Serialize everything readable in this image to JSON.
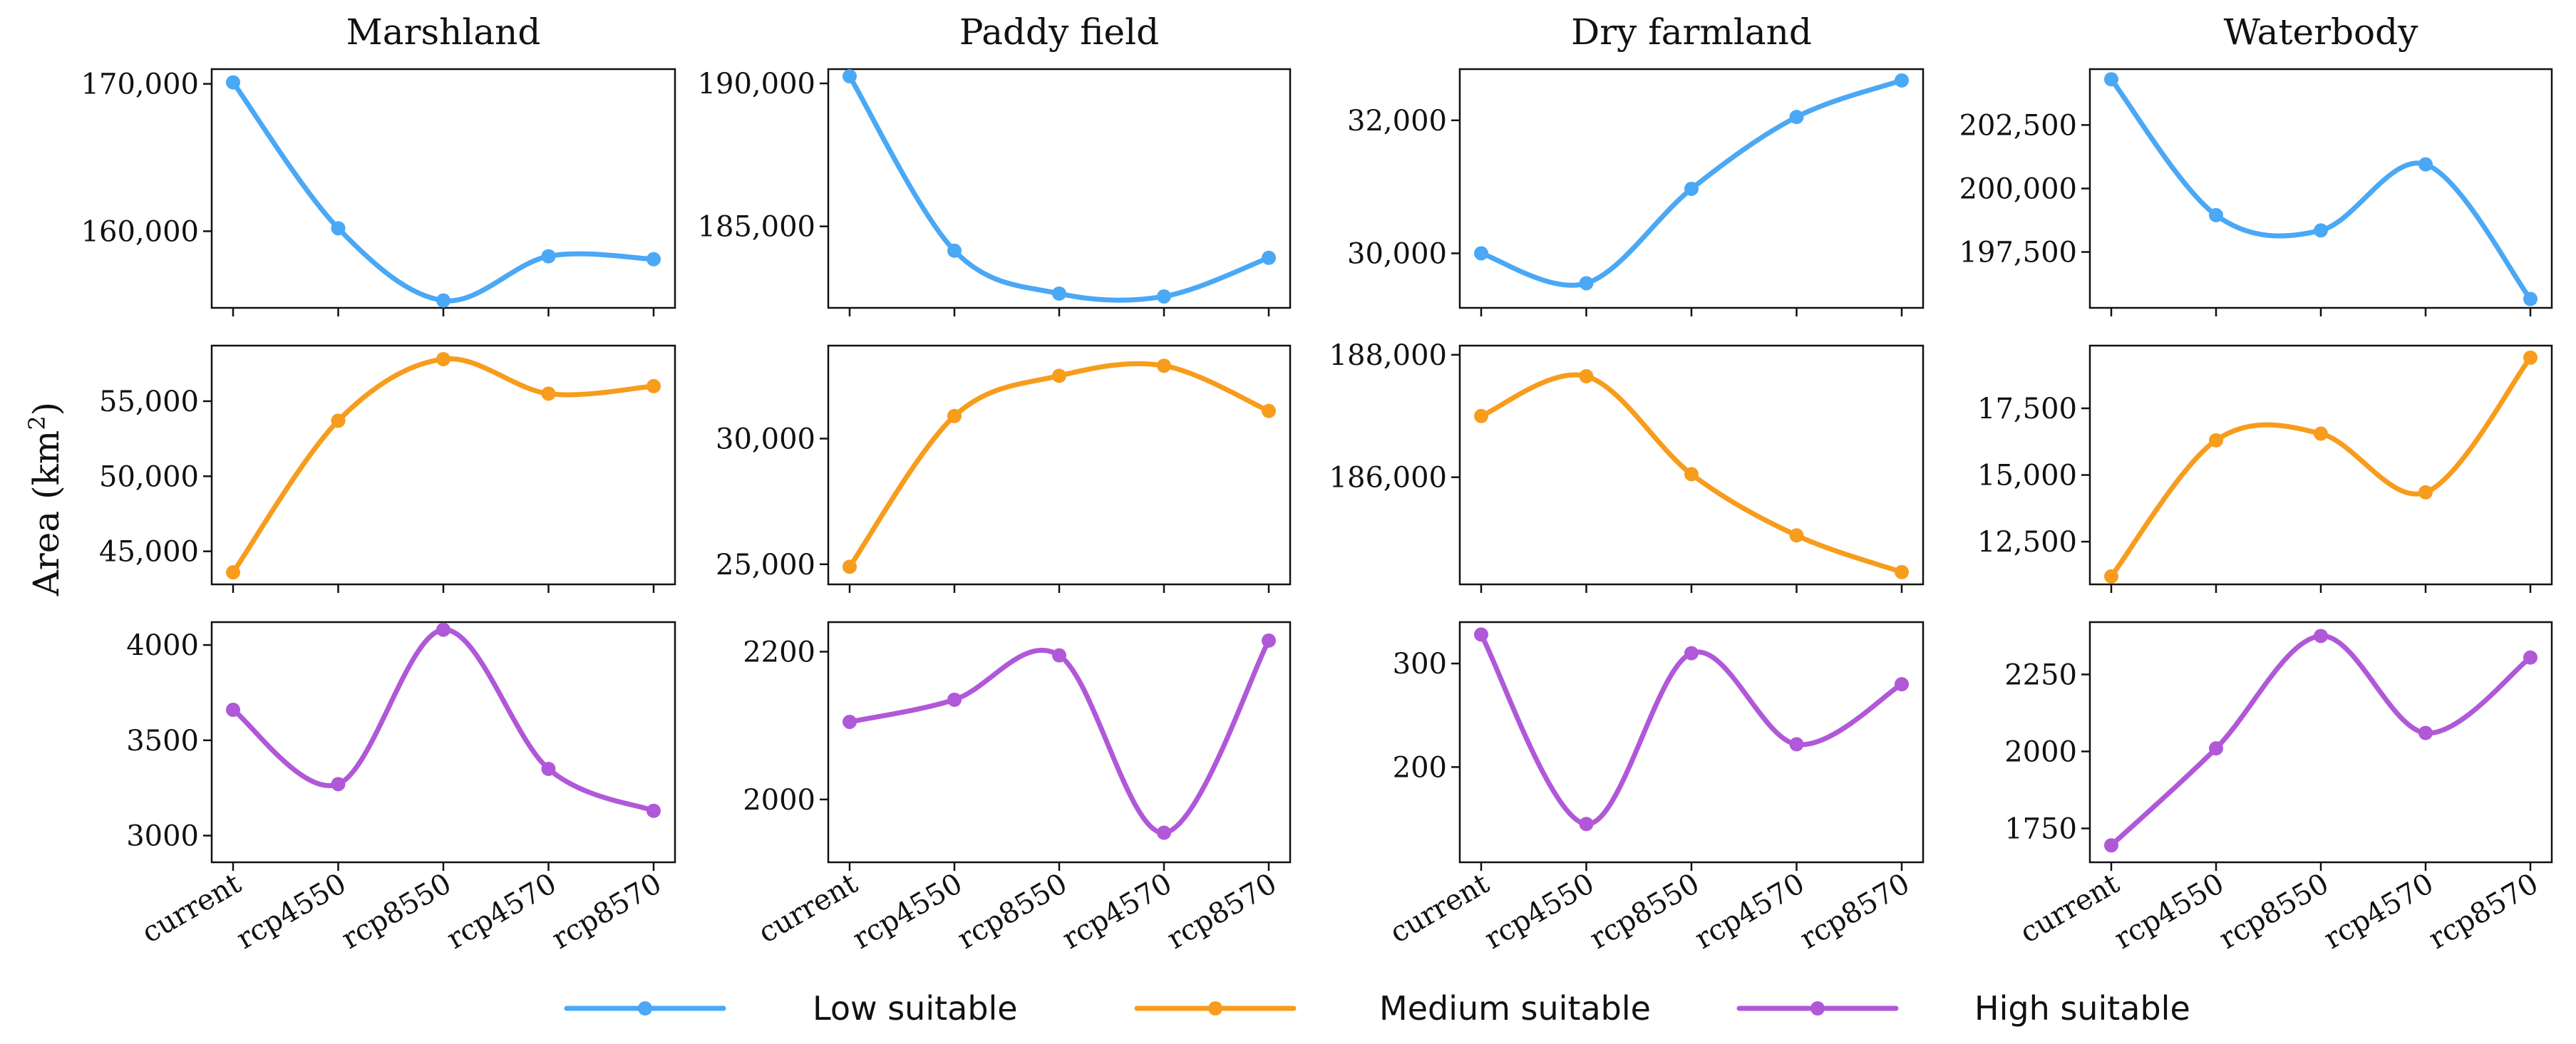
{
  "chart_data": {
    "type": "line",
    "ylabel": "Area (km²)",
    "ylabel_base": "Area (km",
    "ylabel_sup": "2",
    "ylabel_end": ")",
    "categories": [
      "current",
      "rcp4550",
      "rcp8550",
      "rcp4570",
      "rcp8570"
    ],
    "series_styles": [
      {
        "name": "Low suitable",
        "color": "#4aa8f5"
      },
      {
        "name": "Medium suitable",
        "color": "#f79c1c"
      },
      {
        "name": "High suitable",
        "color": "#b058d8"
      }
    ],
    "legend": {
      "position": "bottom",
      "entries": [
        "Low suitable",
        "Medium suitable",
        "High suitable"
      ]
    },
    "columns": [
      {
        "title": "Marshland",
        "rows": [
          {
            "series": "Low suitable",
            "values": [
              170100,
              160200,
              155300,
              158300,
              158100
            ],
            "ylim": [
              154800,
              171000
            ],
            "yticks": [
              160000,
              170000
            ],
            "ytick_labels": [
              "160,000",
              "170,000"
            ]
          },
          {
            "series": "Medium suitable",
            "values": [
              43600,
              53700,
              57800,
              55500,
              56000
            ],
            "ylim": [
              42800,
              58700
            ],
            "yticks": [
              45000,
              50000,
              55000
            ],
            "ytick_labels": [
              "45,000",
              "50,000",
              "55,000"
            ]
          },
          {
            "series": "High suitable",
            "values": [
              3660,
              3270,
              4080,
              3350,
              3130
            ],
            "ylim": [
              2860,
              4120
            ],
            "yticks": [
              3000,
              3500,
              4000
            ],
            "ytick_labels": [
              "3000",
              "3500",
              "4000"
            ]
          }
        ]
      },
      {
        "title": "Paddy field",
        "rows": [
          {
            "series": "Low suitable",
            "values": [
              190250,
              184150,
              182650,
              182550,
              183900
            ],
            "ylim": [
              182150,
              190500
            ],
            "yticks": [
              185000,
              190000
            ],
            "ytick_labels": [
              "185,000",
              "190,000"
            ]
          },
          {
            "series": "Medium suitable",
            "values": [
              24900,
              30900,
              32500,
              32900,
              31100
            ],
            "ylim": [
              24200,
              33700
            ],
            "yticks": [
              25000,
              30000
            ],
            "ytick_labels": [
              "25,000",
              "30,000"
            ]
          },
          {
            "series": "High suitable",
            "values": [
              2105,
              2135,
              2195,
              1955,
              2215
            ],
            "ylim": [
              1915,
              2240
            ],
            "yticks": [
              2000,
              2200
            ],
            "ytick_labels": [
              "2000",
              "2200"
            ]
          }
        ]
      },
      {
        "title": "Dry farmland",
        "rows": [
          {
            "series": "Low suitable",
            "values": [
              30000,
              29550,
              30970,
              32050,
              32600
            ],
            "ylim": [
              29180,
              32770
            ],
            "yticks": [
              30000,
              32000
            ],
            "ytick_labels": [
              "30,000",
              "32,000"
            ]
          },
          {
            "series": "Medium suitable",
            "values": [
              187000,
              187650,
              186050,
              185050,
              184450
            ],
            "ylim": [
              184250,
              188150
            ],
            "yticks": [
              186000,
              188000
            ],
            "ytick_labels": [
              "186,000",
              "188,000"
            ]
          },
          {
            "series": "High suitable",
            "values": [
              328,
              145,
              310,
              222,
              280
            ],
            "ylim": [
              108,
              340
            ],
            "yticks": [
              200,
              300
            ],
            "ytick_labels": [
              "200",
              "300"
            ]
          }
        ]
      },
      {
        "title": "Waterbody",
        "rows": [
          {
            "series": "Low suitable",
            "values": [
              204300,
              198950,
              198350,
              200950,
              195650
            ],
            "ylim": [
              195300,
              204700
            ],
            "yticks": [
              197500,
              200000,
              202500
            ],
            "ytick_labels": [
              "197,500",
              "200,000",
              "202,500"
            ]
          },
          {
            "series": "Medium suitable",
            "values": [
              11200,
              16300,
              16550,
              14350,
              19400
            ],
            "ylim": [
              10900,
              19850
            ],
            "yticks": [
              12500,
              15000,
              17500
            ],
            "ytick_labels": [
              "12,500",
              "15,000",
              "17,500"
            ]
          },
          {
            "series": "High suitable",
            "values": [
              1695,
              2010,
              2375,
              2060,
              2305
            ],
            "ylim": [
              1640,
              2420
            ],
            "yticks": [
              1750,
              2000,
              2250
            ],
            "ytick_labels": [
              "1750",
              "2000",
              "2250"
            ]
          }
        ]
      }
    ]
  }
}
